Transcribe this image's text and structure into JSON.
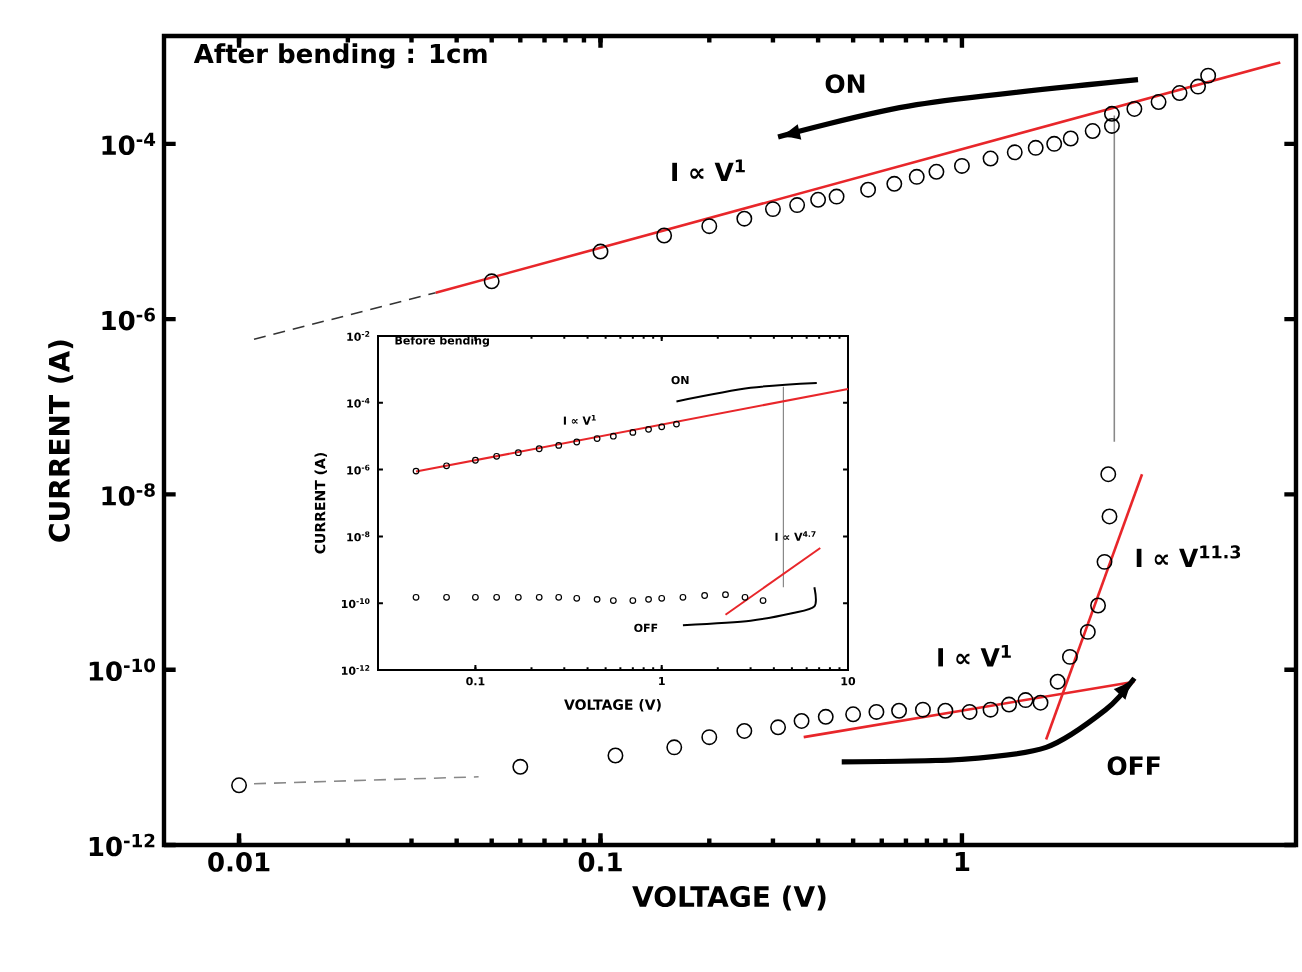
{
  "chart_data": [
    {
      "type": "scatter",
      "title": "After bending : 1cm",
      "xlabel": "VOLTAGE (V)",
      "ylabel": "CURRENT (A)",
      "log": "xy",
      "xlim": [
        0.0062,
        8.4
      ],
      "ylim": [
        1e-12,
        0.0017
      ],
      "xticks": [
        0.01,
        0.1,
        1
      ],
      "yticks": [
        {
          "value": 1e-12,
          "label": "10$^{-12}$"
        },
        {
          "value": 1e-10,
          "label": "10$^{-10}$"
        },
        {
          "value": 1e-08,
          "label": "10$^{-8}$"
        },
        {
          "value": 1e-06,
          "label": "10$^{-6}$"
        },
        {
          "value": 0.0001,
          "label": "10$^{-4}$"
        }
      ],
      "series": [
        {
          "marker": "circle",
          "color": "#000000",
          "x": [
            0.05,
            0.1,
            0.15,
            0.2,
            0.25,
            0.3,
            0.35,
            0.4,
            0.45,
            0.55,
            0.65,
            0.75,
            0.85,
            1.0,
            1.2,
            1.4,
            1.6,
            1.8,
            2.0,
            2.3,
            2.6,
            2.6,
            3.0,
            3.5,
            4.0,
            4.5,
            4.8
          ],
          "values": [
            2.7e-06,
            5.9e-06,
            9e-06,
            1.15e-05,
            1.4e-05,
            1.8e-05,
            2e-05,
            2.3e-05,
            2.5e-05,
            3e-05,
            3.5e-05,
            4.2e-05,
            4.8e-05,
            5.6e-05,
            6.8e-05,
            8e-05,
            9e-05,
            0.0001,
            0.000115,
            0.00014,
            0.00016,
            0.00022,
            0.00025,
            0.0003,
            0.00038,
            0.00045,
            0.0006
          ]
        },
        {
          "marker": "circle",
          "color": "#000000",
          "x": [
            0.01,
            0.06,
            0.11,
            0.16,
            0.2,
            0.25,
            0.31,
            0.36,
            0.42,
            0.5,
            0.58,
            0.67,
            0.78,
            0.9,
            1.05,
            1.2,
            1.35,
            1.5,
            1.65,
            1.84,
            1.99,
            2.23,
            2.38,
            2.48,
            2.56,
            2.54
          ],
          "values": [
            4.8e-12,
            7.8e-12,
            1.05e-11,
            1.3e-11,
            1.7e-11,
            2e-11,
            2.2e-11,
            2.6e-11,
            2.9e-11,
            3.1e-11,
            3.3e-11,
            3.4e-11,
            3.5e-11,
            3.4e-11,
            3.3e-11,
            3.5e-11,
            4e-11,
            4.5e-11,
            4.2e-11,
            7.3e-11,
            1.4e-10,
            2.7e-10,
            5.4e-10,
            1.7e-09,
            5.6e-09,
            1.7e-08
          ]
        },
        {
          "type": "line",
          "line_style": "dashed",
          "color": "#888888",
          "x": [
            0.011,
            0.046
          ],
          "values": [
            5e-12,
            6e-12
          ]
        },
        {
          "type": "line",
          "line_style": "dashed",
          "color": "#333333",
          "x": [
            0.011,
            0.035
          ],
          "values": [
            5.9e-07,
            2e-06
          ]
        },
        {
          "type": "line",
          "line_style": "solid",
          "color": "#888888",
          "x": [
            2.64,
            2.64
          ],
          "values": [
            0.00021,
            4e-08
          ]
        },
        {
          "type": "line",
          "line_style": "solid",
          "color": "#e8262a",
          "x": [
            0.035,
            7.6
          ],
          "values": [
            2e-06,
            0.00085
          ]
        },
        {
          "type": "line",
          "line_style": "solid",
          "color": "#e8262a",
          "x": [
            0.365,
            3.0
          ],
          "values": [
            1.7e-11,
            7.3e-11
          ]
        },
        {
          "type": "line",
          "line_style": "solid",
          "color": "#e8262a",
          "x": [
            1.71,
            3.15
          ],
          "values": [
            1.6e-11,
            1.7e-08
          ]
        },
        {
          "type": "line",
          "line_style": "solid",
          "color": "#000000",
          "x": [
            3.07,
            0.75,
            0.31
          ],
          "values": [
            0.00054,
            0.00028,
            0.00012
          ]
        },
        {
          "type": "line",
          "line_style": "solid",
          "color": "#000000",
          "x": [
            0.465,
            1.0,
            1.71,
            2.5,
            3.0
          ],
          "values": [
            8.9e-12,
            9.5e-12,
            1.3e-11,
            3.5e-11,
            8e-11
          ]
        }
      ],
      "annotations": [
        "ON",
        "I ∝ V$^{1}$",
        "I ∝ V$^{1}$",
        "I ∝ V$^{11.3}$",
        "OFF"
      ]
    },
    {
      "type": "scatter",
      "title": "Before bending",
      "xlabel": "VOLTAGE (V)",
      "ylabel": "CURRENT (A)",
      "log": "xy",
      "xlim": [
        0.03,
        10
      ],
      "ylim": [
        1e-12,
        0.01
      ],
      "xticks": [
        0.1,
        1,
        10
      ],
      "yticks": [
        {
          "value": 1e-12,
          "label": "10$^{-12}$"
        },
        {
          "value": 1e-10,
          "label": "10$^{-10}$"
        },
        {
          "value": 1e-08,
          "label": "10$^{-8}$"
        },
        {
          "value": 1e-06,
          "label": "10$^{-6}$"
        },
        {
          "value": 0.0001,
          "label": "10$^{-4}$"
        },
        {
          "value": 0.01,
          "label": "10$^{-2}$"
        }
      ],
      "series": [
        {
          "marker": "circle",
          "color": "#000000",
          "x": [
            0.048,
            0.07,
            0.1,
            0.13,
            0.17,
            0.22,
            0.28,
            0.35,
            0.45,
            0.55,
            0.7,
            0.85,
            1.0,
            1.2
          ],
          "values": [
            9e-07,
            1.3e-06,
            1.9e-06,
            2.5e-06,
            3.2e-06,
            4.2e-06,
            5.3e-06,
            6.7e-06,
            8.5e-06,
            1e-05,
            1.3e-05,
            1.6e-05,
            1.9e-05,
            2.3e-05
          ]
        },
        {
          "marker": "circle",
          "color": "#000000",
          "x": [
            0.048,
            0.07,
            0.1,
            0.13,
            0.17,
            0.22,
            0.28,
            0.35,
            0.45,
            0.55,
            0.7,
            0.85,
            1.0,
            1.3,
            1.7,
            2.2,
            2.8,
            3.5
          ],
          "values": [
            1.5e-10,
            1.5e-10,
            1.5e-10,
            1.5e-10,
            1.5e-10,
            1.5e-10,
            1.5e-10,
            1.4e-10,
            1.3e-10,
            1.2e-10,
            1.2e-10,
            1.3e-10,
            1.4e-10,
            1.5e-10,
            1.7e-10,
            1.8e-10,
            1.5e-10,
            1.2e-10
          ]
        },
        {
          "type": "line",
          "line_style": "solid",
          "color": "#888888",
          "x": [
            4.5,
            4.5
          ],
          "values": [
            0.0003,
            3e-10
          ]
        },
        {
          "type": "line",
          "line_style": "solid",
          "color": "#e8262a",
          "x": [
            0.048,
            10
          ],
          "values": [
            8.7e-07,
            0.00026
          ]
        },
        {
          "type": "line",
          "line_style": "solid",
          "color": "#e8262a",
          "x": [
            2.2,
            7.1
          ],
          "values": [
            4.5e-11,
            4.5e-09
          ]
        },
        {
          "type": "line",
          "line_style": "solid",
          "color": "#000000",
          "x": [
            6.8,
            3.0,
            1.2
          ],
          "values": [
            0.00039,
            0.00028,
            0.00011
          ]
        },
        {
          "type": "line",
          "line_style": "solid",
          "color": "#000000",
          "x": [
            1.3,
            3.0,
            5.0,
            6.6,
            6.6
          ],
          "values": [
            2.2e-11,
            3e-11,
            5e-11,
            8e-11,
            3e-10
          ]
        }
      ],
      "annotations": [
        "ON",
        "I ∝ V$^{1}$",
        "I ∝ V$^{4.7}$",
        "OFF"
      ]
    }
  ]
}
